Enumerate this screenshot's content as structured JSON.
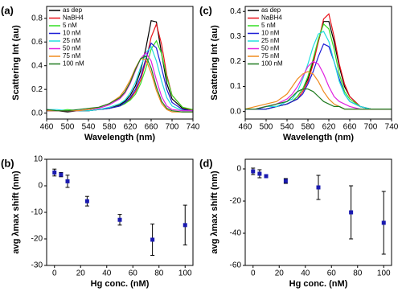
{
  "chart_data": [
    {
      "type": "line",
      "label": "(a)",
      "xlabel": "Wavelength (nm)",
      "ylabel": "Scattering Int (au)",
      "x": [
        460,
        480,
        500,
        520,
        540,
        560,
        580,
        600,
        610,
        620,
        630,
        640,
        650,
        660,
        670,
        680,
        690,
        700,
        720,
        740
      ],
      "xlim": [
        460,
        740
      ],
      "xticks": [
        460,
        500,
        540,
        580,
        620,
        660,
        700,
        740
      ],
      "ylim": [
        -0.05,
        0.9
      ],
      "yticks": [
        {
          "value": 0,
          "label": "0.0"
        },
        {
          "value": 0.2,
          "label": "0.2"
        },
        {
          "value": 0.4,
          "label": "0.4"
        },
        {
          "value": 0.6,
          "label": "0.6"
        },
        {
          "value": 0.8,
          "label": "0.8"
        }
      ],
      "series": [
        {
          "name": "as dep",
          "color": "#000000",
          "values": [
            0.02,
            0.02,
            0.01,
            0.02,
            0.02,
            0.03,
            0.04,
            0.07,
            0.1,
            0.15,
            0.23,
            0.36,
            0.55,
            0.78,
            0.77,
            0.5,
            0.25,
            0.12,
            0.04,
            0.02
          ]
        },
        {
          "name": "NaBH4",
          "color": "#e8141c",
          "values": [
            0.02,
            0.02,
            0.02,
            0.02,
            0.02,
            0.03,
            0.04,
            0.06,
            0.08,
            0.12,
            0.18,
            0.28,
            0.44,
            0.64,
            0.75,
            0.58,
            0.32,
            0.15,
            0.05,
            0.02
          ]
        },
        {
          "name": "5 nM",
          "color": "#33dd22",
          "values": [
            0.03,
            0.02,
            0.03,
            0.02,
            0.02,
            0.03,
            0.04,
            0.06,
            0.08,
            0.11,
            0.16,
            0.25,
            0.38,
            0.54,
            0.61,
            0.5,
            0.3,
            0.15,
            0.05,
            0.03
          ]
        },
        {
          "name": "10 nM",
          "color": "#1a1ad6",
          "values": [
            0.02,
            0.02,
            0.02,
            0.02,
            0.02,
            0.03,
            0.04,
            0.06,
            0.09,
            0.13,
            0.2,
            0.31,
            0.46,
            0.59,
            0.55,
            0.38,
            0.2,
            0.09,
            0.03,
            0.02
          ]
        },
        {
          "name": "25 nM",
          "color": "#22dddd",
          "values": [
            0.03,
            0.03,
            0.02,
            0.02,
            0.02,
            0.03,
            0.05,
            0.08,
            0.11,
            0.17,
            0.26,
            0.39,
            0.51,
            0.56,
            0.44,
            0.27,
            0.13,
            0.06,
            0.02,
            0.02
          ]
        },
        {
          "name": "50 nM",
          "color": "#e020e0",
          "values": [
            0.03,
            0.02,
            0.02,
            0.02,
            0.03,
            0.04,
            0.07,
            0.12,
            0.17,
            0.25,
            0.36,
            0.46,
            0.51,
            0.44,
            0.28,
            0.14,
            0.06,
            0.03,
            0.02,
            0.02
          ]
        },
        {
          "name": "75 nM",
          "color": "#f08a1e",
          "values": [
            0.02,
            0.02,
            0.02,
            0.02,
            0.03,
            0.05,
            0.08,
            0.14,
            0.2,
            0.28,
            0.38,
            0.46,
            0.45,
            0.34,
            0.19,
            0.08,
            0.03,
            0.01,
            0.01,
            0.01
          ]
        },
        {
          "name": "100 nM",
          "color": "#1e7a1e",
          "values": [
            0.03,
            0.02,
            0.02,
            0.03,
            0.04,
            0.05,
            0.08,
            0.13,
            0.18,
            0.26,
            0.37,
            0.46,
            0.48,
            0.38,
            0.22,
            0.1,
            0.04,
            0.02,
            0.01,
            0.01
          ]
        }
      ]
    },
    {
      "type": "line",
      "label": "(c)",
      "xlabel": "Wavelength (nm)",
      "ylabel": "Scattering Int (au)",
      "x": [
        460,
        480,
        500,
        520,
        540,
        550,
        560,
        570,
        580,
        590,
        600,
        610,
        620,
        630,
        640,
        650,
        660,
        680,
        700,
        740
      ],
      "xlim": [
        460,
        740
      ],
      "xticks": [
        460,
        500,
        540,
        580,
        620,
        660,
        700,
        740
      ],
      "ylim": [
        -0.03,
        0.42
      ],
      "yticks": [
        {
          "value": 0,
          "label": "0.0"
        },
        {
          "value": 0.1,
          "label": "0.1"
        },
        {
          "value": 0.2,
          "label": "0.2"
        },
        {
          "value": 0.3,
          "label": "0.3"
        },
        {
          "value": 0.4,
          "label": "0.4"
        }
      ],
      "series": [
        {
          "name": "as dep",
          "color": "#000000",
          "values": [
            0.01,
            0.01,
            0.01,
            0.02,
            0.03,
            0.04,
            0.06,
            0.09,
            0.13,
            0.2,
            0.28,
            0.36,
            0.36,
            0.28,
            0.18,
            0.1,
            0.06,
            0.02,
            0.01,
            0.01
          ]
        },
        {
          "name": "NaBH4",
          "color": "#e8141c",
          "values": [
            0.01,
            0.01,
            0.02,
            0.02,
            0.03,
            0.04,
            0.05,
            0.08,
            0.12,
            0.19,
            0.28,
            0.37,
            0.39,
            0.3,
            0.19,
            0.11,
            0.06,
            0.02,
            0.01,
            0.01
          ]
        },
        {
          "name": "5 nM",
          "color": "#33dd22",
          "values": [
            0.01,
            0.01,
            0.01,
            0.02,
            0.03,
            0.04,
            0.06,
            0.09,
            0.14,
            0.21,
            0.29,
            0.35,
            0.33,
            0.25,
            0.15,
            0.08,
            0.05,
            0.02,
            0.01,
            0.01
          ]
        },
        {
          "name": "10 nM",
          "color": "#1a1ad6",
          "values": [
            0.01,
            0.01,
            0.01,
            0.02,
            0.03,
            0.04,
            0.05,
            0.07,
            0.11,
            0.16,
            0.22,
            0.27,
            0.26,
            0.2,
            0.13,
            0.07,
            0.04,
            0.02,
            0.01,
            0.01
          ]
        },
        {
          "name": "25 nM",
          "color": "#22dddd",
          "values": [
            0.01,
            0.01,
            0.02,
            0.02,
            0.04,
            0.05,
            0.08,
            0.13,
            0.19,
            0.26,
            0.31,
            0.32,
            0.28,
            0.2,
            0.12,
            0.07,
            0.04,
            0.02,
            0.01,
            0.01
          ]
        },
        {
          "name": "50 nM",
          "color": "#e020e0",
          "values": [
            0.01,
            0.01,
            0.02,
            0.03,
            0.05,
            0.07,
            0.1,
            0.14,
            0.18,
            0.2,
            0.19,
            0.15,
            0.1,
            0.06,
            0.04,
            0.03,
            0.02,
            0.01,
            0.01,
            0.01
          ]
        },
        {
          "name": "75 nM",
          "color": "#f08a1e",
          "values": [
            0.01,
            0.02,
            0.03,
            0.04,
            0.07,
            0.1,
            0.13,
            0.15,
            0.16,
            0.15,
            0.12,
            0.08,
            0.05,
            0.03,
            0.02,
            0.01,
            0.01,
            0.01,
            0.01,
            0.01
          ]
        },
        {
          "name": "100 nM",
          "color": "#1e7a1e",
          "values": [
            0.01,
            0.01,
            0.02,
            0.03,
            0.04,
            0.06,
            0.08,
            0.09,
            0.09,
            0.08,
            0.06,
            0.04,
            0.03,
            0.02,
            0.02,
            0.01,
            0.01,
            0.01,
            0.01,
            0.01
          ]
        }
      ]
    },
    {
      "type": "scatter",
      "label": "(b)",
      "xlabel": "Hg conc. (nM)",
      "ylabel": "avg λmax shift (nm)",
      "color": "#1a1ab0",
      "x": [
        0,
        5,
        10,
        25,
        50,
        75,
        100
      ],
      "values": [
        5,
        4.2,
        1.7,
        -5.8,
        -12.8,
        -20.3,
        -14.8
      ],
      "errors": [
        1.3,
        0.8,
        2.3,
        1.8,
        2,
        5.9,
        7.5
      ],
      "xlim": [
        -6,
        106
      ],
      "xticks": [
        0,
        20,
        40,
        60,
        80,
        100
      ],
      "ylim": [
        -30,
        10
      ],
      "yticks": [
        -30,
        -20,
        -10,
        0,
        10
      ]
    },
    {
      "type": "scatter",
      "label": "(d)",
      "xlabel": "Hg conc. (nM)",
      "ylabel": "avg λmax shift (nm)",
      "color": "#1a1ab0",
      "x": [
        0,
        5,
        10,
        25,
        50,
        75,
        100
      ],
      "values": [
        -1.5,
        -3,
        -4.5,
        -7.5,
        -11.5,
        -27,
        -33.5
      ],
      "errors": [
        2,
        2.5,
        1,
        1.5,
        7.5,
        16.5,
        19.5
      ],
      "xlim": [
        -6,
        106
      ],
      "xticks": [
        0,
        20,
        40,
        60,
        80,
        100
      ],
      "ylim": [
        -60,
        6
      ],
      "yticks": [
        -60,
        -40,
        -20,
        0
      ]
    }
  ]
}
